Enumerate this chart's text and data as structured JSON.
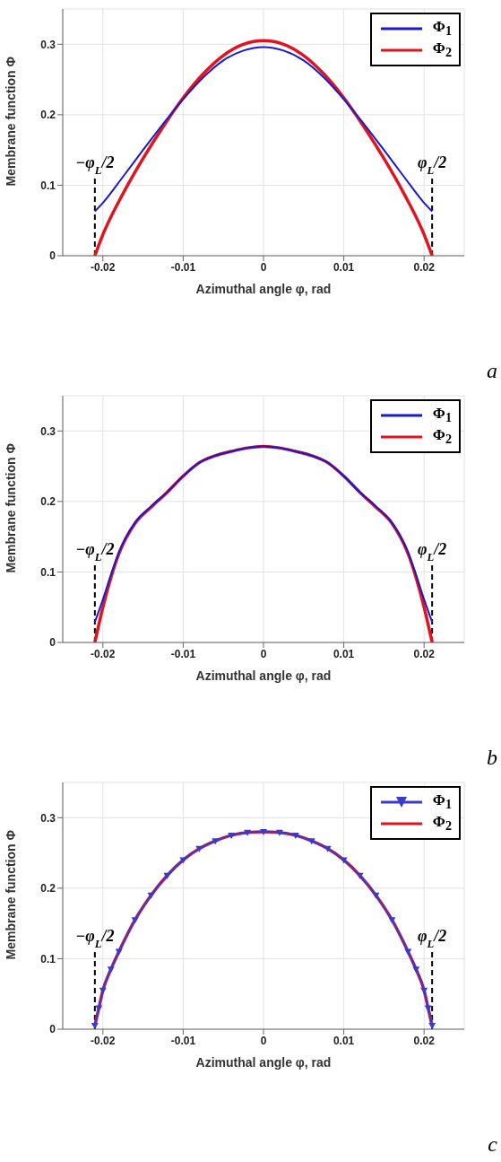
{
  "chart_data": [
    {
      "type": "line",
      "xlabel": "Azimuthal angle φ, rad",
      "ylabel": "Membrane function Φ",
      "xlim": [
        -0.025,
        0.025
      ],
      "xticks": [
        -0.02,
        -0.01,
        0,
        0.01,
        0.02
      ],
      "ylim": [
        0,
        0.35
      ],
      "yticks": [
        0,
        0.1,
        0.2,
        0.3
      ],
      "grid": true,
      "legend": "top right",
      "line_style": "solid",
      "annotations": [
        "a"
      ],
      "ref_lines": [
        {
          "axis": "x",
          "value": -0.021,
          "label": "−φ$_{L}$/2",
          "line_style": "dashed",
          "color": "#000000"
        },
        {
          "axis": "x",
          "value": 0.021,
          "label": "φ$_{L}$/2",
          "line_style": "dashed",
          "color": "#000000"
        }
      ],
      "x": [
        -0.021,
        -0.02,
        -0.0175,
        -0.015,
        -0.0125,
        -0.01,
        -0.0075,
        -0.005,
        -0.0025,
        0,
        0.0025,
        0.005,
        0.0075,
        0.01,
        0.0125,
        0.015,
        0.0175,
        0.02,
        0.021
      ],
      "series": [
        {
          "name": "Φ$_{1}$",
          "color": "#1a1acc",
          "values": [
            0.063,
            0.075,
            0.112,
            0.15,
            0.187,
            0.222,
            0.253,
            0.277,
            0.291,
            0.296,
            0.291,
            0.277,
            0.253,
            0.222,
            0.187,
            0.15,
            0.112,
            0.075,
            0.063
          ]
        },
        {
          "name": "Φ$_{2}$",
          "color": "#e0141e",
          "values": [
            0,
            0.03,
            0.088,
            0.138,
            0.183,
            0.224,
            0.258,
            0.284,
            0.3,
            0.305,
            0.3,
            0.284,
            0.258,
            0.224,
            0.183,
            0.138,
            0.088,
            0.03,
            0
          ]
        }
      ]
    },
    {
      "type": "line",
      "xlabel": "Azimuthal angle φ, rad",
      "ylabel": "Membrane function Φ",
      "xlim": [
        -0.025,
        0.025
      ],
      "xticks": [
        -0.02,
        -0.01,
        0,
        0.01,
        0.02
      ],
      "ylim": [
        0,
        0.35
      ],
      "yticks": [
        0,
        0.1,
        0.2,
        0.3
      ],
      "grid": true,
      "legend": "top right",
      "line_style": "solid",
      "annotations": [
        "b"
      ],
      "ref_lines": [
        {
          "axis": "x",
          "value": -0.021,
          "label": "−φ$_{L}$/2",
          "line_style": "dashed",
          "color": "#000000"
        },
        {
          "axis": "x",
          "value": 0.021,
          "label": "φ$_{L}$/2",
          "line_style": "dashed",
          "color": "#000000"
        }
      ],
      "x": [
        -0.021,
        -0.02,
        -0.019,
        -0.018,
        -0.016,
        -0.014,
        -0.012,
        -0.01,
        -0.008,
        -0.006,
        -0.004,
        -0.002,
        0,
        0.002,
        0.004,
        0.006,
        0.008,
        0.01,
        0.012,
        0.014,
        0.016,
        0.018,
        0.019,
        0.02,
        0.021
      ],
      "series": [
        {
          "name": "Φ$_{1}$",
          "color": "#1a1acc",
          "values": [
            0.029,
            0.061,
            0.096,
            0.128,
            0.17,
            0.193,
            0.213,
            0.236,
            0.255,
            0.265,
            0.271,
            0.276,
            0.278,
            0.276,
            0.271,
            0.265,
            0.255,
            0.236,
            0.213,
            0.193,
            0.17,
            0.128,
            0.096,
            0.061,
            0.029
          ]
        },
        {
          "name": "Φ$_{2}$",
          "color": "#e0141e",
          "values": [
            0,
            0.05,
            0.092,
            0.126,
            0.169,
            0.192,
            0.213,
            0.236,
            0.255,
            0.265,
            0.271,
            0.276,
            0.278,
            0.276,
            0.271,
            0.265,
            0.255,
            0.236,
            0.213,
            0.192,
            0.169,
            0.126,
            0.092,
            0.05,
            0
          ]
        }
      ]
    },
    {
      "type": "line",
      "xlabel": "Azimuthal angle φ, rad",
      "ylabel": "Membrane function Φ",
      "xlim": [
        -0.025,
        0.025
      ],
      "xticks": [
        -0.02,
        -0.01,
        0,
        0.01,
        0.02
      ],
      "ylim": [
        0,
        0.35
      ],
      "yticks": [
        0,
        0.1,
        0.2,
        0.3
      ],
      "grid": true,
      "legend": "top right",
      "line_style": "solid",
      "annotations": [
        "c"
      ],
      "ref_lines": [
        {
          "axis": "x",
          "value": -0.021,
          "label": "−φ$_{L}$/2",
          "line_style": "dashed",
          "color": "#000000"
        },
        {
          "axis": "x",
          "value": 0.021,
          "label": "φ$_{L}$/2",
          "line_style": "dashed",
          "color": "#000000"
        }
      ],
      "x": [
        -0.021,
        -0.0205,
        -0.02,
        -0.019,
        -0.018,
        -0.016,
        -0.014,
        -0.012,
        -0.01,
        -0.008,
        -0.006,
        -0.004,
        -0.002,
        0,
        0.002,
        0.004,
        0.006,
        0.008,
        0.01,
        0.012,
        0.014,
        0.016,
        0.018,
        0.019,
        0.02,
        0.0205,
        0.021
      ],
      "series": [
        {
          "name": "Φ$_{1}$",
          "color": "#3a3acc",
          "marker": "triangle",
          "values": [
            0.005,
            0.03,
            0.055,
            0.085,
            0.11,
            0.155,
            0.19,
            0.218,
            0.24,
            0.256,
            0.267,
            0.275,
            0.279,
            0.28,
            0.279,
            0.275,
            0.267,
            0.256,
            0.24,
            0.218,
            0.19,
            0.155,
            0.11,
            0.085,
            0.055,
            0.03,
            0.005
          ]
        },
        {
          "name": "Φ$_{2}$",
          "color": "#e0141e",
          "values": [
            0.005,
            0.03,
            0.055,
            0.085,
            0.11,
            0.155,
            0.19,
            0.218,
            0.24,
            0.256,
            0.267,
            0.275,
            0.279,
            0.28,
            0.279,
            0.275,
            0.267,
            0.256,
            0.24,
            0.218,
            0.19,
            0.155,
            0.11,
            0.085,
            0.055,
            0.03,
            0.005
          ]
        }
      ]
    }
  ]
}
